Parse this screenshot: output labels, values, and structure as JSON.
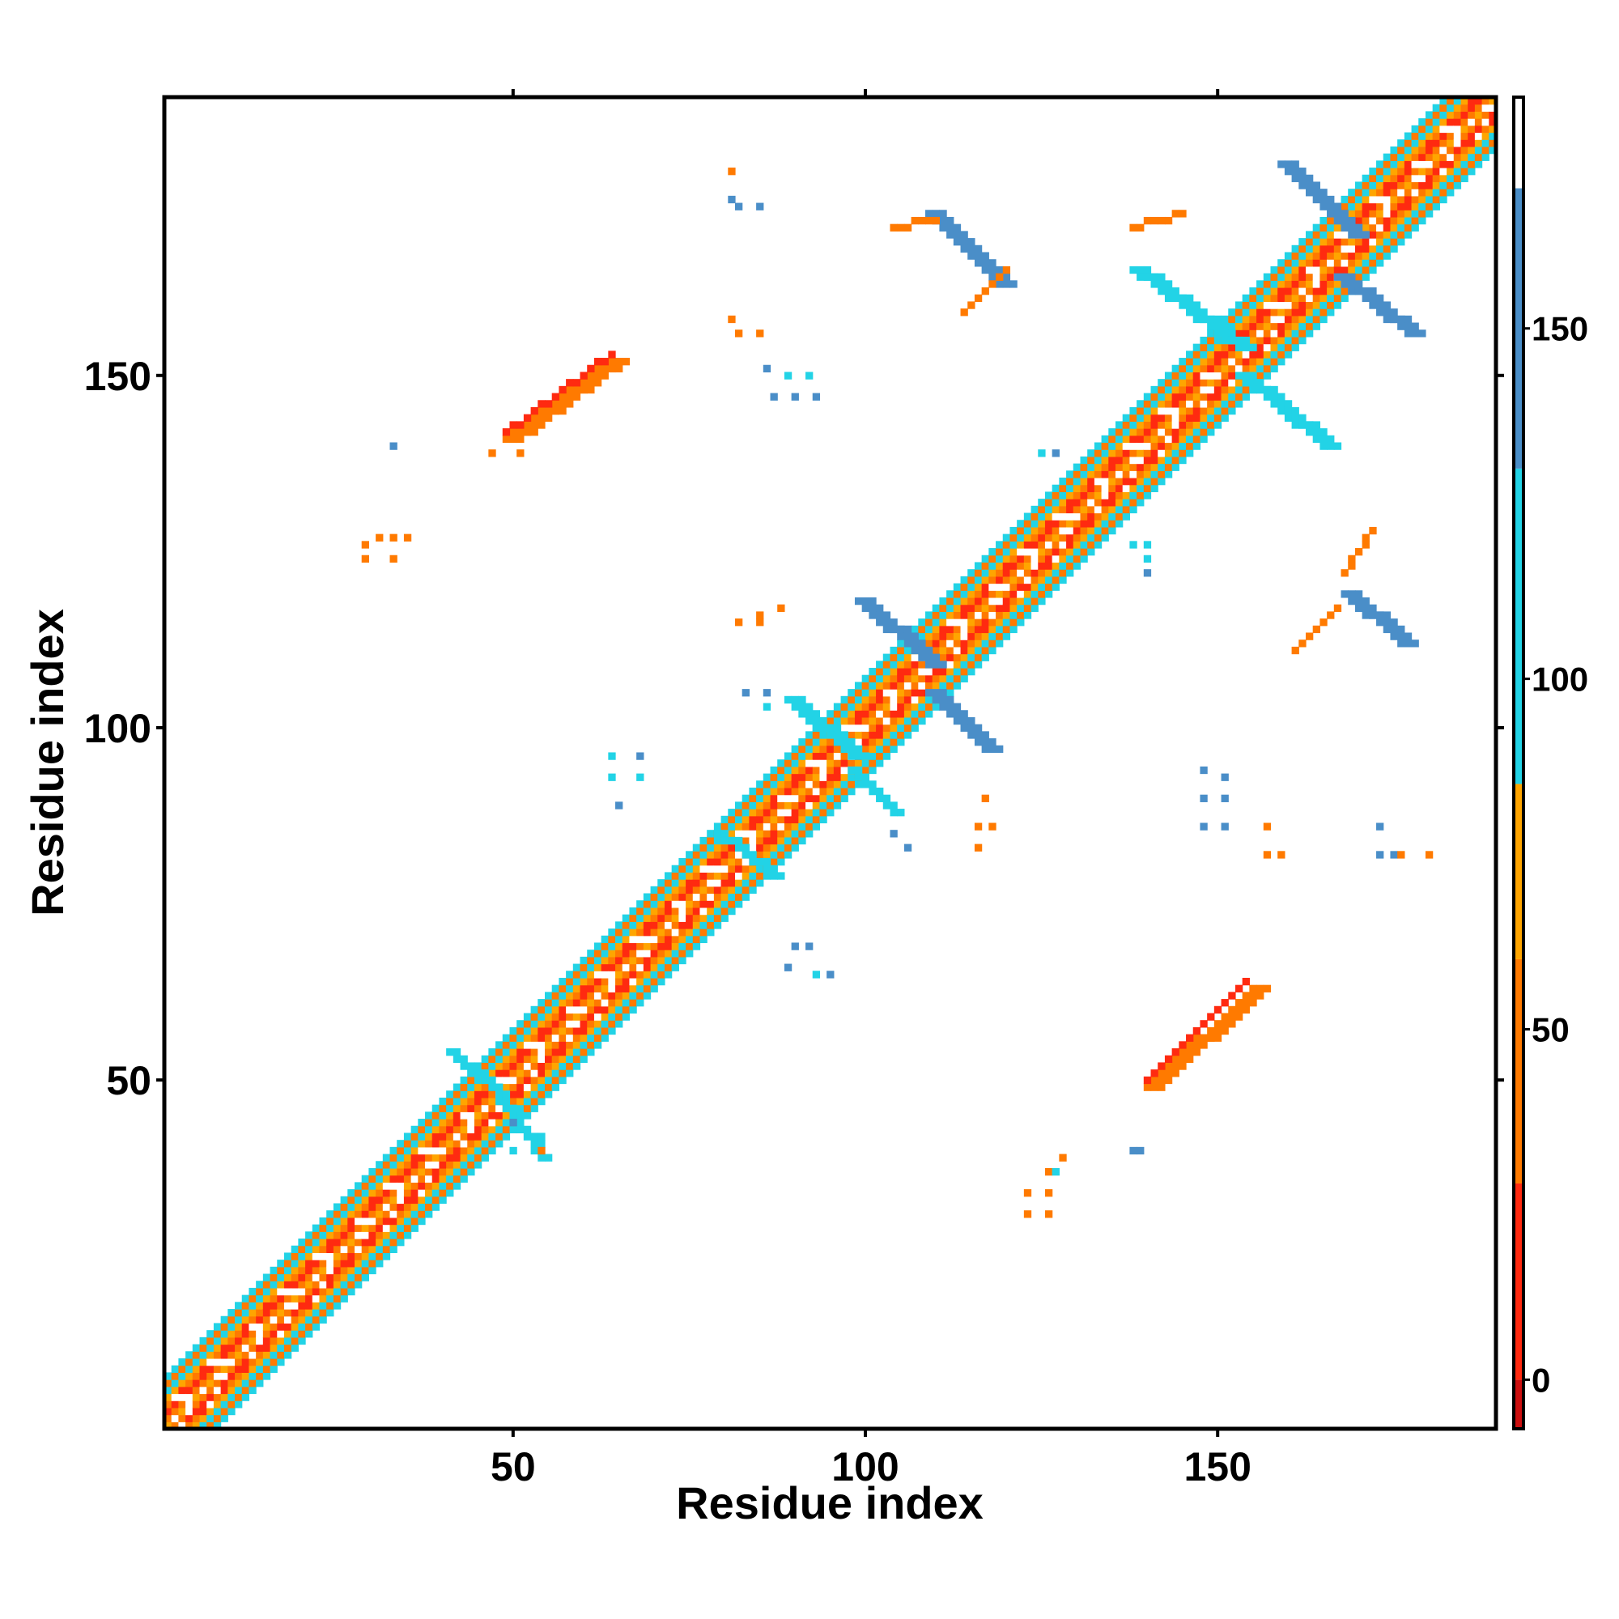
{
  "chart_data": {
    "type": "heatmap",
    "xlabel": "Residue index",
    "ylabel": "Residue index",
    "xlim": [
      1,
      189
    ],
    "ylim": [
      1,
      189
    ],
    "xticks": [
      50,
      100,
      150
    ],
    "yticks": [
      50,
      100,
      150
    ],
    "grid": false,
    "colorbar": {
      "position": "right",
      "range": [
        -7,
        183
      ],
      "ticks": [
        0,
        50,
        100,
        150
      ],
      "bands": [
        {
          "from": -7,
          "to": 0,
          "color": "#cc1010"
        },
        {
          "from": 0,
          "to": 28,
          "color": "#ff2a10"
        },
        {
          "from": 28,
          "to": 60,
          "color": "#ff7a00"
        },
        {
          "from": 60,
          "to": 85,
          "color": "#ffa500"
        },
        {
          "from": 85,
          "to": 130,
          "color": "#22d3e6"
        },
        {
          "from": 130,
          "to": 170,
          "color": "#4a8ec8"
        },
        {
          "from": 170,
          "to": 183,
          "color": "#ffffff"
        }
      ]
    },
    "diagonal": {
      "from": 1,
      "to": 189,
      "half_width": 7
    },
    "segments": [
      {
        "x": [
          109,
          119
        ],
        "y": [
          173,
          163
        ],
        "w": 3,
        "color": "#4a8ec8"
      },
      {
        "x": [
          159,
          169
        ],
        "y": [
          180,
          170
        ],
        "w": 3,
        "color": "#4a8ec8"
      },
      {
        "x": [
          167,
          177
        ],
        "y": [
          164,
          156
        ],
        "w": 3,
        "color": "#4a8ec8"
      },
      {
        "x": [
          99,
          109
        ],
        "y": [
          118,
          109
        ],
        "w": 3,
        "color": "#4a8ec8"
      },
      {
        "x": [
          109,
          117
        ],
        "y": [
          105,
          97
        ],
        "w": 3,
        "color": "#4a8ec8"
      },
      {
        "x": [
          168,
          176
        ],
        "y": [
          119,
          112
        ],
        "w": 3,
        "color": "#4a8ec8"
      },
      {
        "x": [
          138,
          153
        ],
        "y": [
          165,
          154
        ],
        "w": 3,
        "color": "#22d3e6"
      },
      {
        "x": [
          153,
          165
        ],
        "y": [
          150,
          140
        ],
        "w": 3,
        "color": "#22d3e6"
      },
      {
        "x": [
          89,
          98
        ],
        "y": [
          104,
          96
        ],
        "w": 3,
        "color": "#22d3e6"
      },
      {
        "x": [
          98,
          104
        ],
        "y": [
          94,
          88
        ],
        "w": 2,
        "color": "#22d3e6"
      },
      {
        "x": [
          41,
          48
        ],
        "y": [
          54,
          48
        ],
        "w": 2,
        "color": "#22d3e6"
      },
      {
        "x": [
          48,
          54
        ],
        "y": [
          47,
          39
        ],
        "w": 2,
        "color": "#22d3e6"
      },
      {
        "x": [
          79,
          87
        ],
        "y": [
          85,
          79
        ],
        "w": 2,
        "color": "#22d3e6"
      },
      {
        "x": [
          49,
          64
        ],
        "y": [
          141,
          152
        ],
        "w": 3,
        "color": "#ff7a00"
      },
      {
        "x": [
          140,
          155
        ],
        "y": [
          49,
          63
        ],
        "w": 3,
        "color": "#ff7a00"
      },
      {
        "x": [
          49,
          64
        ],
        "y": [
          142,
          153
        ],
        "w": 1,
        "color": "#ff2a10"
      },
      {
        "x": [
          140,
          154
        ],
        "y": [
          50,
          64
        ],
        "w": 1,
        "color": "#ff2a10"
      },
      {
        "x": [
          114,
          120
        ],
        "y": [
          159,
          165
        ],
        "w": 1,
        "color": "#ff7a00"
      },
      {
        "x": [
          161,
          167
        ],
        "y": [
          111,
          117
        ],
        "w": 1,
        "color": "#ff7a00"
      },
      {
        "x": [
          168,
          172
        ],
        "y": [
          122,
          128
        ],
        "w": 1,
        "color": "#ff7a00"
      },
      {
        "x": [
          104,
          110
        ],
        "y": [
          171,
          172
        ],
        "w": 1,
        "color": "#ff7a00"
      },
      {
        "x": [
          138,
          145
        ],
        "y": [
          171,
          173
        ],
        "w": 1,
        "color": "#ff7a00"
      }
    ],
    "cells": [
      {
        "x": 33,
        "y": 140,
        "color": "#4a8ec8"
      },
      {
        "x": 29,
        "y": 126,
        "color": "#ff7a00"
      },
      {
        "x": 31,
        "y": 127,
        "color": "#ff7a00"
      },
      {
        "x": 33,
        "y": 127,
        "color": "#ff7a00"
      },
      {
        "x": 35,
        "y": 127,
        "color": "#ff7a00"
      },
      {
        "x": 29,
        "y": 124,
        "color": "#ff7a00"
      },
      {
        "x": 33,
        "y": 124,
        "color": "#ff7a00"
      },
      {
        "x": 47,
        "y": 139,
        "color": "#ff7a00"
      },
      {
        "x": 51,
        "y": 139,
        "color": "#ff7a00"
      },
      {
        "x": 81,
        "y": 179,
        "color": "#ff7a00"
      },
      {
        "x": 81,
        "y": 175,
        "color": "#4a8ec8"
      },
      {
        "x": 82,
        "y": 174,
        "color": "#4a8ec8"
      },
      {
        "x": 85,
        "y": 174,
        "color": "#4a8ec8"
      },
      {
        "x": 81,
        "y": 158,
        "color": "#ff7a00"
      },
      {
        "x": 82,
        "y": 156,
        "color": "#ff7a00"
      },
      {
        "x": 85,
        "y": 156,
        "color": "#ff7a00"
      },
      {
        "x": 86,
        "y": 151,
        "color": "#4a8ec8"
      },
      {
        "x": 89,
        "y": 150,
        "color": "#22d3e6"
      },
      {
        "x": 92,
        "y": 150,
        "color": "#22d3e6"
      },
      {
        "x": 87,
        "y": 147,
        "color": "#4a8ec8"
      },
      {
        "x": 90,
        "y": 147,
        "color": "#4a8ec8"
      },
      {
        "x": 93,
        "y": 147,
        "color": "#4a8ec8"
      },
      {
        "x": 82,
        "y": 115,
        "color": "#ff7a00"
      },
      {
        "x": 85,
        "y": 116,
        "color": "#ff7a00"
      },
      {
        "x": 88,
        "y": 117,
        "color": "#ff7a00"
      },
      {
        "x": 85,
        "y": 115,
        "color": "#ff7a00"
      },
      {
        "x": 83,
        "y": 105,
        "color": "#4a8ec8"
      },
      {
        "x": 86,
        "y": 105,
        "color": "#4a8ec8"
      },
      {
        "x": 86,
        "y": 103,
        "color": "#22d3e6"
      },
      {
        "x": 64,
        "y": 96,
        "color": "#22d3e6"
      },
      {
        "x": 68,
        "y": 96,
        "color": "#4a8ec8"
      },
      {
        "x": 64,
        "y": 93,
        "color": "#22d3e6"
      },
      {
        "x": 68,
        "y": 93,
        "color": "#22d3e6"
      },
      {
        "x": 65,
        "y": 89,
        "color": "#4a8ec8"
      },
      {
        "x": 90,
        "y": 69,
        "color": "#4a8ec8"
      },
      {
        "x": 92,
        "y": 69,
        "color": "#4a8ec8"
      },
      {
        "x": 89,
        "y": 66,
        "color": "#4a8ec8"
      },
      {
        "x": 93,
        "y": 65,
        "color": "#22d3e6"
      },
      {
        "x": 95,
        "y": 65,
        "color": "#4a8ec8"
      },
      {
        "x": 117,
        "y": 90,
        "color": "#ff7a00"
      },
      {
        "x": 116,
        "y": 86,
        "color": "#ff7a00"
      },
      {
        "x": 118,
        "y": 86,
        "color": "#ff7a00"
      },
      {
        "x": 116,
        "y": 83,
        "color": "#ff7a00"
      },
      {
        "x": 104,
        "y": 85,
        "color": "#4a8ec8"
      },
      {
        "x": 106,
        "y": 83,
        "color": "#4a8ec8"
      },
      {
        "x": 148,
        "y": 94,
        "color": "#4a8ec8"
      },
      {
        "x": 151,
        "y": 93,
        "color": "#4a8ec8"
      },
      {
        "x": 148,
        "y": 90,
        "color": "#4a8ec8"
      },
      {
        "x": 151,
        "y": 90,
        "color": "#4a8ec8"
      },
      {
        "x": 148,
        "y": 86,
        "color": "#4a8ec8"
      },
      {
        "x": 151,
        "y": 86,
        "color": "#4a8ec8"
      },
      {
        "x": 157,
        "y": 86,
        "color": "#ff7a00"
      },
      {
        "x": 157,
        "y": 82,
        "color": "#ff7a00"
      },
      {
        "x": 159,
        "y": 82,
        "color": "#ff7a00"
      },
      {
        "x": 173,
        "y": 86,
        "color": "#4a8ec8"
      },
      {
        "x": 173,
        "y": 82,
        "color": "#4a8ec8"
      },
      {
        "x": 175,
        "y": 82,
        "color": "#4a8ec8"
      },
      {
        "x": 176,
        "y": 82,
        "color": "#ff7a00"
      },
      {
        "x": 180,
        "y": 82,
        "color": "#ff7a00"
      },
      {
        "x": 138,
        "y": 126,
        "color": "#22d3e6"
      },
      {
        "x": 140,
        "y": 126,
        "color": "#22d3e6"
      },
      {
        "x": 140,
        "y": 124,
        "color": "#22d3e6"
      },
      {
        "x": 140,
        "y": 122,
        "color": "#4a8ec8"
      },
      {
        "x": 125,
        "y": 139,
        "color": "#22d3e6"
      },
      {
        "x": 127,
        "y": 139,
        "color": "#4a8ec8"
      },
      {
        "x": 138,
        "y": 40,
        "color": "#4a8ec8"
      },
      {
        "x": 139,
        "y": 40,
        "color": "#4a8ec8"
      },
      {
        "x": 123,
        "y": 34,
        "color": "#ff7a00"
      },
      {
        "x": 126,
        "y": 34,
        "color": "#ff7a00"
      },
      {
        "x": 126,
        "y": 37,
        "color": "#ff7a00"
      },
      {
        "x": 127,
        "y": 37,
        "color": "#22d3e6"
      },
      {
        "x": 128,
        "y": 39,
        "color": "#ff7a00"
      },
      {
        "x": 123,
        "y": 31,
        "color": "#ff7a00"
      },
      {
        "x": 126,
        "y": 31,
        "color": "#ff7a00"
      },
      {
        "x": 52,
        "y": 42,
        "color": "#22d3e6"
      },
      {
        "x": 54,
        "y": 42,
        "color": "#22d3e6"
      },
      {
        "x": 54,
        "y": 40,
        "color": "#ff7a00"
      },
      {
        "x": 50,
        "y": 40,
        "color": "#22d3e6"
      },
      {
        "x": 50,
        "y": 44,
        "color": "#4a8ec8"
      }
    ]
  }
}
